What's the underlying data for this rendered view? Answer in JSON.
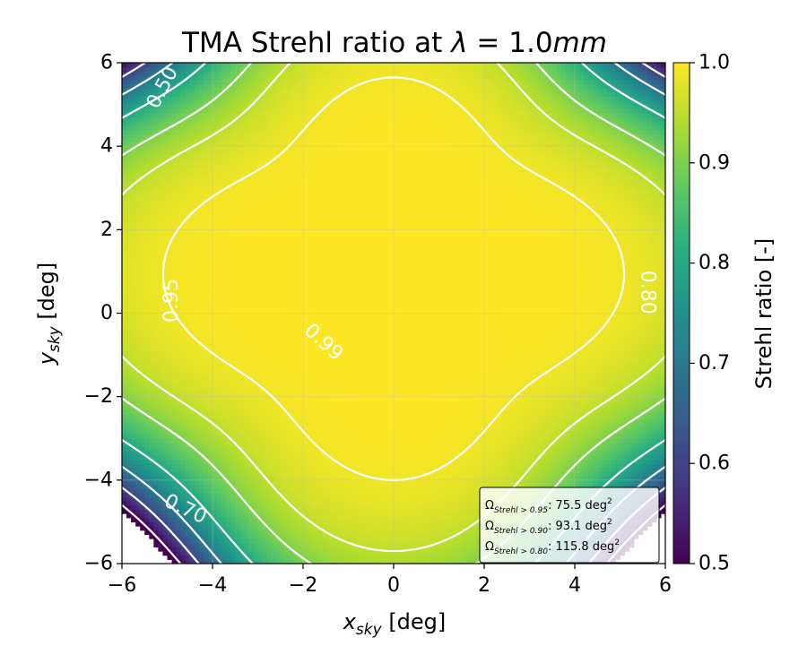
{
  "chart_data": {
    "type": "heatmap",
    "title": "TMA Strehl ratio at λ = 1.0mm",
    "title_parts": {
      "prefix": "TMA Strehl ratio at ",
      "lambda": "λ",
      "eq": " = 1.0",
      "unit": "mm"
    },
    "xlabel": {
      "main": "x",
      "sub": "sky",
      "unit": " [deg]"
    },
    "ylabel": {
      "main": "y",
      "sub": "sky",
      "unit": " [deg]"
    },
    "xlim": [
      -6,
      6
    ],
    "ylim": [
      -6,
      6
    ],
    "xticks": [
      -6,
      -4,
      -2,
      0,
      2,
      4,
      6
    ],
    "yticks": [
      -6,
      -4,
      -2,
      0,
      2,
      4,
      6
    ],
    "xtick_labels": [
      "−6",
      "−4",
      "−2",
      "0",
      "2",
      "4",
      "6"
    ],
    "ytick_labels": [
      "−6",
      "−4",
      "−2",
      "0",
      "2",
      "4",
      "6"
    ],
    "grid": true,
    "colorbar": {
      "label": "Strehl ratio [-]",
      "range": [
        0.5,
        1.0
      ],
      "ticks": [
        0.5,
        0.6,
        0.7,
        0.8,
        0.9,
        1.0
      ],
      "tick_labels": [
        "0.5",
        "0.6",
        "0.7",
        "0.8",
        "0.9",
        "1.0"
      ],
      "colormap": "viridis"
    },
    "contour_levels": [
      0.5,
      0.6,
      0.7,
      0.8,
      0.9,
      0.95,
      0.99
    ],
    "contour_labels": [
      {
        "text": "0.50",
        "level": 0.5,
        "x": -5.1,
        "y": 5.4,
        "angle": -62
      },
      {
        "text": "0.80",
        "level": 0.8,
        "x": 5.6,
        "y": 0.5,
        "angle": 90
      },
      {
        "text": "0.95",
        "level": 0.95,
        "x": -4.9,
        "y": 0.3,
        "angle": -90
      },
      {
        "text": "0.99",
        "level": 0.99,
        "x": -1.55,
        "y": -0.7,
        "angle": 42
      },
      {
        "text": "0.70",
        "level": 0.7,
        "x": -4.6,
        "y": -4.7,
        "angle": 25
      }
    ],
    "legend": {
      "placement": "lower-right",
      "entries": [
        {
          "sub": "Strehl > 0.95",
          "value": ": 75.5 deg",
          "sup": "2"
        },
        {
          "sub": "Strehl > 0.90",
          "value": ": 93.1 deg",
          "sup": "2"
        },
        {
          "sub": "Strehl > 0.80",
          "value": ": 115.8 deg",
          "sup": "2"
        }
      ]
    }
  }
}
